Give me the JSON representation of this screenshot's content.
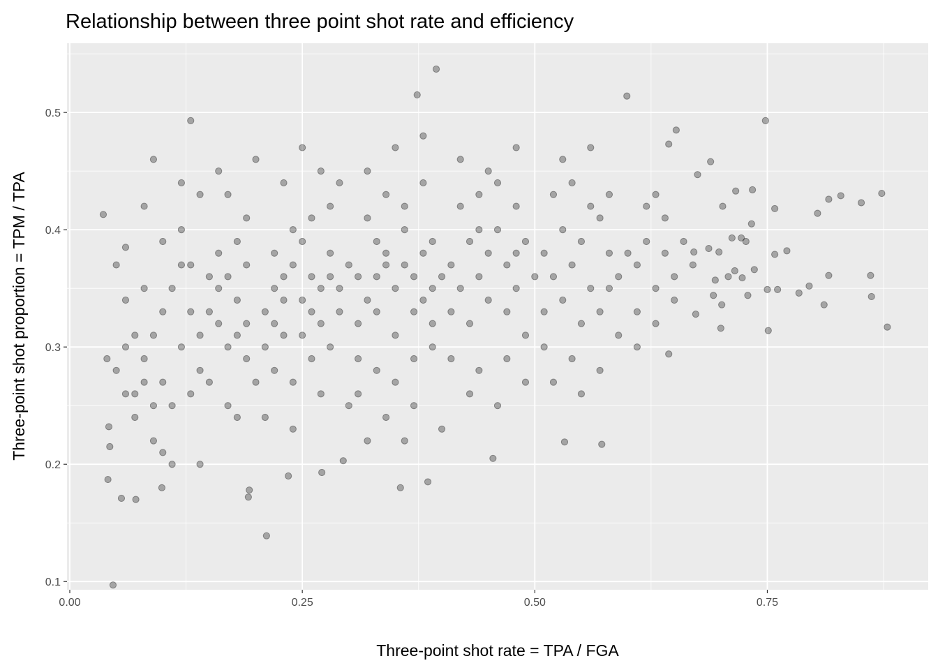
{
  "chart_data": {
    "type": "scatter",
    "title": "Relationship between three point shot rate and efficiency",
    "xlabel": "Three-point shot rate = TPA / FGA",
    "ylabel": "Three-point shot proportion = TPM / TPA",
    "xlim": [
      -0.003,
      0.923
    ],
    "ylim": [
      0.093,
      0.559
    ],
    "x_ticks": [
      0,
      0.25,
      0.5,
      0.75
    ],
    "x_tick_labels": [
      "0.00",
      "0.25",
      "0.50",
      "0.75"
    ],
    "y_ticks": [
      0.1,
      0.2,
      0.3,
      0.4,
      0.5
    ],
    "y_tick_labels": [
      "0.1",
      "0.2",
      "0.3",
      "0.4",
      "0.5"
    ],
    "grid": true,
    "background": "#ebebeb",
    "point_color": "#000000",
    "point_alpha": 0.3,
    "points": [
      [
        0.0465,
        0.097
      ],
      [
        0.2115,
        0.139
      ],
      [
        0.394,
        0.537
      ],
      [
        0.3735,
        0.515
      ],
      [
        0.599,
        0.514
      ],
      [
        0.13,
        0.493
      ],
      [
        0.748,
        0.493
      ],
      [
        0.873,
        0.431
      ],
      [
        0.879,
        0.317
      ],
      [
        0.861,
        0.361
      ],
      [
        0.862,
        0.343
      ],
      [
        0.851,
        0.423
      ],
      [
        0.829,
        0.429
      ],
      [
        0.816,
        0.426
      ],
      [
        0.804,
        0.414
      ],
      [
        0.751,
        0.314
      ],
      [
        0.734,
        0.434
      ],
      [
        0.733,
        0.405
      ],
      [
        0.716,
        0.433
      ],
      [
        0.702,
        0.42
      ],
      [
        0.7,
        0.316
      ],
      [
        0.689,
        0.458
      ],
      [
        0.675,
        0.447
      ],
      [
        0.652,
        0.485
      ],
      [
        0.644,
        0.473
      ],
      [
        0.644,
        0.294
      ],
      [
        0.572,
        0.217
      ],
      [
        0.532,
        0.219
      ],
      [
        0.455,
        0.205
      ],
      [
        0.385,
        0.185
      ],
      [
        0.3555,
        0.18
      ],
      [
        0.192,
        0.172
      ],
      [
        0.193,
        0.178
      ],
      [
        0.036,
        0.413
      ],
      [
        0.041,
        0.187
      ],
      [
        0.042,
        0.232
      ],
      [
        0.043,
        0.215
      ],
      [
        0.0555,
        0.171
      ],
      [
        0.071,
        0.17
      ],
      [
        0.235,
        0.19
      ],
      [
        0.271,
        0.193
      ],
      [
        0.294,
        0.203
      ],
      [
        0.099,
        0.18
      ],
      [
        0.795,
        0.352
      ],
      [
        0.811,
        0.336
      ],
      [
        0.816,
        0.361
      ],
      [
        0.784,
        0.346
      ],
      [
        0.771,
        0.382
      ],
      [
        0.758,
        0.379
      ],
      [
        0.758,
        0.418
      ],
      [
        0.761,
        0.349
      ],
      [
        0.75,
        0.349
      ],
      [
        0.736,
        0.366
      ],
      [
        0.729,
        0.344
      ],
      [
        0.723,
        0.359
      ],
      [
        0.715,
        0.365
      ],
      [
        0.708,
        0.36
      ],
      [
        0.727,
        0.39
      ],
      [
        0.722,
        0.393
      ],
      [
        0.712,
        0.393
      ],
      [
        0.698,
        0.381
      ],
      [
        0.701,
        0.336
      ],
      [
        0.692,
        0.344
      ],
      [
        0.694,
        0.357
      ],
      [
        0.687,
        0.384
      ],
      [
        0.673,
        0.328
      ],
      [
        0.671,
        0.381
      ],
      [
        0.04,
        0.29
      ],
      [
        0.05,
        0.28
      ],
      [
        0.06,
        0.3
      ],
      [
        0.07,
        0.26
      ],
      [
        0.08,
        0.27
      ],
      [
        0.09,
        0.31
      ],
      [
        0.06,
        0.34
      ],
      [
        0.08,
        0.35
      ],
      [
        0.1,
        0.33
      ],
      [
        0.07,
        0.24
      ],
      [
        0.09,
        0.22
      ],
      [
        0.05,
        0.37
      ],
      [
        0.06,
        0.385
      ],
      [
        0.08,
        0.42
      ],
      [
        0.1,
        0.39
      ],
      [
        0.09,
        0.46
      ],
      [
        0.07,
        0.31
      ],
      [
        0.1,
        0.27
      ],
      [
        0.08,
        0.29
      ],
      [
        0.1,
        0.21
      ],
      [
        0.06,
        0.26
      ],
      [
        0.09,
        0.25
      ],
      [
        0.11,
        0.35
      ],
      [
        0.12,
        0.3
      ],
      [
        0.13,
        0.33
      ],
      [
        0.14,
        0.28
      ],
      [
        0.15,
        0.36
      ],
      [
        0.16,
        0.32
      ],
      [
        0.17,
        0.3
      ],
      [
        0.18,
        0.34
      ],
      [
        0.19,
        0.37
      ],
      [
        0.12,
        0.4
      ],
      [
        0.14,
        0.43
      ],
      [
        0.16,
        0.45
      ],
      [
        0.18,
        0.39
      ],
      [
        0.11,
        0.25
      ],
      [
        0.13,
        0.26
      ],
      [
        0.15,
        0.27
      ],
      [
        0.17,
        0.25
      ],
      [
        0.19,
        0.29
      ],
      [
        0.12,
        0.37
      ],
      [
        0.14,
        0.31
      ],
      [
        0.16,
        0.35
      ],
      [
        0.18,
        0.31
      ],
      [
        0.13,
        0.37
      ],
      [
        0.15,
        0.33
      ],
      [
        0.17,
        0.36
      ],
      [
        0.19,
        0.32
      ],
      [
        0.11,
        0.2
      ],
      [
        0.14,
        0.2
      ],
      [
        0.18,
        0.24
      ],
      [
        0.12,
        0.44
      ],
      [
        0.17,
        0.43
      ],
      [
        0.2,
        0.46
      ],
      [
        0.16,
        0.38
      ],
      [
        0.19,
        0.41
      ],
      [
        0.21,
        0.33
      ],
      [
        0.22,
        0.35
      ],
      [
        0.23,
        0.31
      ],
      [
        0.24,
        0.37
      ],
      [
        0.25,
        0.34
      ],
      [
        0.26,
        0.36
      ],
      [
        0.27,
        0.32
      ],
      [
        0.28,
        0.38
      ],
      [
        0.29,
        0.35
      ],
      [
        0.21,
        0.3
      ],
      [
        0.23,
        0.34
      ],
      [
        0.25,
        0.31
      ],
      [
        0.27,
        0.35
      ],
      [
        0.29,
        0.33
      ],
      [
        0.22,
        0.38
      ],
      [
        0.24,
        0.4
      ],
      [
        0.26,
        0.41
      ],
      [
        0.28,
        0.42
      ],
      [
        0.2,
        0.27
      ],
      [
        0.22,
        0.28
      ],
      [
        0.24,
        0.27
      ],
      [
        0.26,
        0.29
      ],
      [
        0.28,
        0.3
      ],
      [
        0.23,
        0.44
      ],
      [
        0.25,
        0.47
      ],
      [
        0.27,
        0.45
      ],
      [
        0.29,
        0.44
      ],
      [
        0.21,
        0.24
      ],
      [
        0.24,
        0.23
      ],
      [
        0.27,
        0.26
      ],
      [
        0.3,
        0.25
      ],
      [
        0.22,
        0.32
      ],
      [
        0.26,
        0.33
      ],
      [
        0.28,
        0.36
      ],
      [
        0.25,
        0.39
      ],
      [
        0.23,
        0.36
      ],
      [
        0.3,
        0.37
      ],
      [
        0.31,
        0.36
      ],
      [
        0.32,
        0.34
      ],
      [
        0.33,
        0.39
      ],
      [
        0.34,
        0.37
      ],
      [
        0.35,
        0.35
      ],
      [
        0.36,
        0.4
      ],
      [
        0.37,
        0.36
      ],
      [
        0.38,
        0.38
      ],
      [
        0.39,
        0.35
      ],
      [
        0.31,
        0.32
      ],
      [
        0.33,
        0.33
      ],
      [
        0.35,
        0.31
      ],
      [
        0.37,
        0.33
      ],
      [
        0.39,
        0.32
      ],
      [
        0.32,
        0.41
      ],
      [
        0.34,
        0.43
      ],
      [
        0.36,
        0.42
      ],
      [
        0.38,
        0.44
      ],
      [
        0.31,
        0.29
      ],
      [
        0.33,
        0.28
      ],
      [
        0.35,
        0.27
      ],
      [
        0.37,
        0.29
      ],
      [
        0.39,
        0.3
      ],
      [
        0.32,
        0.45
      ],
      [
        0.35,
        0.47
      ],
      [
        0.38,
        0.48
      ],
      [
        0.31,
        0.26
      ],
      [
        0.34,
        0.24
      ],
      [
        0.37,
        0.25
      ],
      [
        0.33,
        0.36
      ],
      [
        0.36,
        0.37
      ],
      [
        0.39,
        0.39
      ],
      [
        0.4,
        0.36
      ],
      [
        0.34,
        0.38
      ],
      [
        0.38,
        0.34
      ],
      [
        0.32,
        0.22
      ],
      [
        0.36,
        0.22
      ],
      [
        0.4,
        0.23
      ],
      [
        0.41,
        0.37
      ],
      [
        0.42,
        0.35
      ],
      [
        0.43,
        0.39
      ],
      [
        0.44,
        0.36
      ],
      [
        0.45,
        0.38
      ],
      [
        0.46,
        0.4
      ],
      [
        0.47,
        0.37
      ],
      [
        0.48,
        0.35
      ],
      [
        0.49,
        0.39
      ],
      [
        0.41,
        0.33
      ],
      [
        0.43,
        0.32
      ],
      [
        0.45,
        0.34
      ],
      [
        0.47,
        0.33
      ],
      [
        0.49,
        0.31
      ],
      [
        0.42,
        0.42
      ],
      [
        0.44,
        0.43
      ],
      [
        0.46,
        0.44
      ],
      [
        0.48,
        0.42
      ],
      [
        0.41,
        0.29
      ],
      [
        0.44,
        0.28
      ],
      [
        0.47,
        0.29
      ],
      [
        0.42,
        0.46
      ],
      [
        0.45,
        0.45
      ],
      [
        0.48,
        0.47
      ],
      [
        0.43,
        0.26
      ],
      [
        0.46,
        0.25
      ],
      [
        0.49,
        0.27
      ],
      [
        0.44,
        0.4
      ],
      [
        0.48,
        0.38
      ],
      [
        0.5,
        0.36
      ],
      [
        0.51,
        0.38
      ],
      [
        0.52,
        0.36
      ],
      [
        0.53,
        0.4
      ],
      [
        0.54,
        0.37
      ],
      [
        0.55,
        0.39
      ],
      [
        0.56,
        0.35
      ],
      [
        0.57,
        0.41
      ],
      [
        0.58,
        0.38
      ],
      [
        0.59,
        0.36
      ],
      [
        0.51,
        0.33
      ],
      [
        0.53,
        0.34
      ],
      [
        0.55,
        0.32
      ],
      [
        0.57,
        0.33
      ],
      [
        0.59,
        0.31
      ],
      [
        0.52,
        0.43
      ],
      [
        0.54,
        0.44
      ],
      [
        0.56,
        0.42
      ],
      [
        0.58,
        0.43
      ],
      [
        0.51,
        0.3
      ],
      [
        0.54,
        0.29
      ],
      [
        0.57,
        0.28
      ],
      [
        0.53,
        0.46
      ],
      [
        0.56,
        0.47
      ],
      [
        0.52,
        0.27
      ],
      [
        0.55,
        0.26
      ],
      [
        0.6,
        0.38
      ],
      [
        0.58,
        0.35
      ],
      [
        0.61,
        0.37
      ],
      [
        0.62,
        0.39
      ],
      [
        0.63,
        0.35
      ],
      [
        0.64,
        0.38
      ],
      [
        0.65,
        0.36
      ],
      [
        0.61,
        0.33
      ],
      [
        0.63,
        0.32
      ],
      [
        0.62,
        0.42
      ],
      [
        0.64,
        0.41
      ],
      [
        0.66,
        0.39
      ],
      [
        0.61,
        0.3
      ],
      [
        0.65,
        0.34
      ],
      [
        0.67,
        0.37
      ],
      [
        0.63,
        0.43
      ]
    ]
  }
}
